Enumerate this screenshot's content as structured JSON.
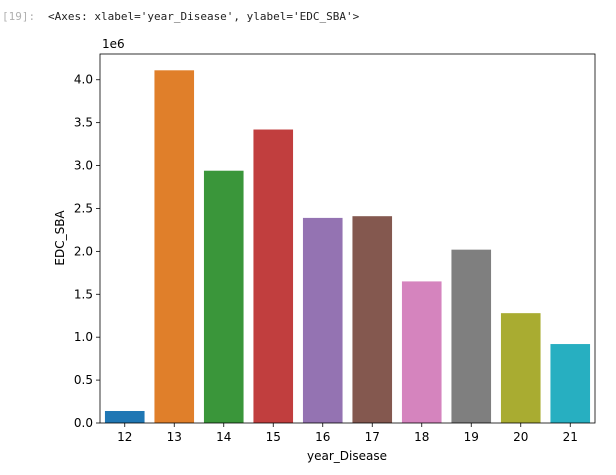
{
  "cell": {
    "prompt": "[19]:",
    "repr": "<Axes: xlabel='year_Disease', ylabel='EDC_SBA'>"
  },
  "chart_data": {
    "type": "bar",
    "categories": [
      "12",
      "13",
      "14",
      "15",
      "16",
      "17",
      "18",
      "19",
      "20",
      "21"
    ],
    "values": [
      140000,
      4110000,
      2940000,
      3420000,
      2390000,
      2410000,
      1650000,
      2020000,
      1280000,
      920000
    ],
    "colors": [
      "#1f77b4",
      "#e07f2a",
      "#3a963a",
      "#c13e3e",
      "#9473b2",
      "#84584f",
      "#d584be",
      "#7f7f7f",
      "#a9ac31",
      "#27afc1"
    ],
    "xlabel": "year_Disease",
    "ylabel": "EDC_SBA",
    "offset_label": "1e6",
    "ylim": [
      0,
      4300000
    ],
    "yticks": [
      0,
      500000,
      1000000,
      1500000,
      2000000,
      2500000,
      3000000,
      3500000,
      4000000
    ],
    "ytick_labels": [
      "0.0",
      "0.5",
      "1.0",
      "1.5",
      "2.0",
      "2.5",
      "3.0",
      "3.5",
      "4.0"
    ],
    "grid": false,
    "legend": "none"
  }
}
